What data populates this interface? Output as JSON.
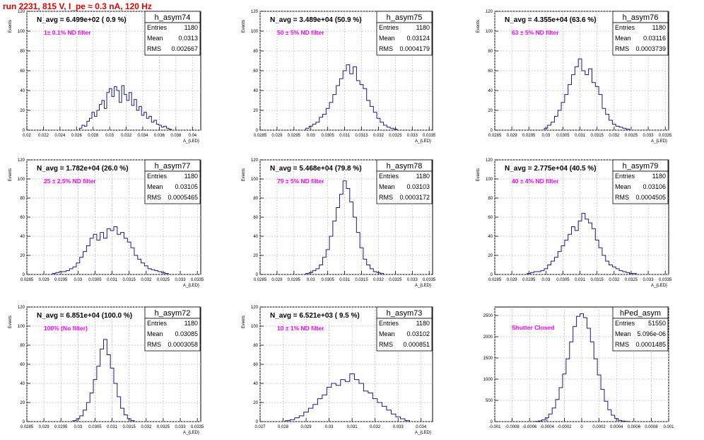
{
  "page_title": "run 2231,   815 V, I_pe ≈ 0.3 nA, 120 Hz",
  "colors": {
    "histogram_line": "#1a1a80",
    "annotation": "#ff00ff",
    "title_text": "#e00000",
    "grid": "#bbbbbb"
  },
  "stat_labels": {
    "entries": "Entries",
    "mean": "Mean",
    "rms": "RMS"
  },
  "chart_data": [
    {
      "type": "histogram",
      "title": "h_asym74",
      "stats": {
        "entries": "1180",
        "mean": "0.0313",
        "rms": "0.002667"
      },
      "navg_text": "N_avg = 6.499e+02 ( 0.9 %)",
      "annotation": "1± 0.1% ND filter",
      "xlabel": "A_{LED}",
      "ylabel": "Events",
      "xlim": [
        0.02,
        0.041
      ],
      "ylim": [
        0,
        120
      ],
      "xticks": [
        0.02,
        0.022,
        0.024,
        0.026,
        0.028,
        0.03,
        0.032,
        0.034,
        0.036,
        0.038,
        0.04
      ],
      "xtick_labels": [
        "0.02",
        "0.022",
        "0.024",
        "0.026",
        "0.028",
        "0.03",
        "0.032",
        "0.034",
        "0.036",
        "0.038",
        "0.04"
      ],
      "yticks": [
        0,
        20,
        40,
        60,
        80,
        100,
        120
      ],
      "x": [
        0.0265,
        0.0268,
        0.0271,
        0.0274,
        0.0277,
        0.028,
        0.0283,
        0.0286,
        0.0289,
        0.0292,
        0.0295,
        0.0298,
        0.0301,
        0.0304,
        0.0307,
        0.031,
        0.0313,
        0.0316,
        0.0319,
        0.0322,
        0.0325,
        0.0328,
        0.0331,
        0.0334,
        0.0337,
        0.034,
        0.0343,
        0.0346,
        0.0349,
        0.0352,
        0.0355,
        0.0358,
        0.0361,
        0.0364,
        0.0367,
        0.037,
        0.0373
      ],
      "values": [
        2,
        5,
        4,
        9,
        12,
        18,
        14,
        20,
        26,
        30,
        22,
        38,
        42,
        34,
        44,
        40,
        28,
        45,
        36,
        30,
        38,
        25,
        31,
        20,
        24,
        15,
        18,
        12,
        14,
        8,
        10,
        6,
        5,
        3,
        4,
        2,
        1
      ]
    },
    {
      "type": "histogram",
      "title": "h_asym75",
      "stats": {
        "entries": "1180",
        "mean": "0.03124",
        "rms": "0.0004179"
      },
      "navg_text": "N_avg = 3.489e+04 (50.9 %)",
      "annotation": "50 ± 5% ND filter",
      "xlabel": "A_{LED}",
      "ylabel": "Events",
      "xlim": [
        0.0285,
        0.0336
      ],
      "ylim": [
        0,
        120
      ],
      "xticks": [
        0.0285,
        0.029,
        0.0295,
        0.03,
        0.0305,
        0.031,
        0.0315,
        0.032,
        0.0325,
        0.033,
        0.0335
      ],
      "xtick_labels": [
        "0.0285",
        "0.029",
        "0.0295",
        "0.03",
        "0.0305",
        "0.031",
        "0.0315",
        "0.032",
        "0.0325",
        "0.033",
        "0.0335"
      ],
      "yticks": [
        0,
        20,
        40,
        60,
        80,
        100,
        120
      ],
      "x": [
        0.0299,
        0.03,
        0.0301,
        0.0302,
        0.0303,
        0.0304,
        0.0305,
        0.0306,
        0.0307,
        0.0308,
        0.0309,
        0.031,
        0.0311,
        0.0312,
        0.0313,
        0.0314,
        0.0315,
        0.0316,
        0.0317,
        0.0318,
        0.0319,
        0.032,
        0.0321,
        0.0322,
        0.0323,
        0.0324,
        0.0325
      ],
      "values": [
        2,
        4,
        6,
        8,
        13,
        16,
        22,
        28,
        36,
        45,
        52,
        60,
        66,
        57,
        64,
        50,
        46,
        42,
        30,
        24,
        18,
        12,
        8,
        5,
        3,
        2,
        1
      ]
    },
    {
      "type": "histogram",
      "title": "h_asym76",
      "stats": {
        "entries": "1180",
        "mean": "0.03116",
        "rms": "0.0003739"
      },
      "navg_text": "N_avg = 4.355e+04 (63.6 %)",
      "annotation": "63 ± 5% ND filter",
      "xlabel": "A_{LED}",
      "ylabel": "Events",
      "xlim": [
        0.0285,
        0.0336
      ],
      "ylim": [
        0,
        120
      ],
      "xticks": [
        0.0285,
        0.029,
        0.0295,
        0.03,
        0.0305,
        0.031,
        0.0315,
        0.032,
        0.0325,
        0.033,
        0.0335
      ],
      "xtick_labels": [
        "0.0285",
        "0.029",
        "0.0295",
        "0.03",
        "0.0305",
        "0.031",
        "0.0315",
        "0.032",
        "0.0325",
        "0.033",
        "0.0335"
      ],
      "yticks": [
        0,
        20,
        40,
        60,
        80,
        100,
        120
      ],
      "x": [
        0.03,
        0.0301,
        0.0302,
        0.0303,
        0.0304,
        0.0305,
        0.0306,
        0.0307,
        0.0308,
        0.0309,
        0.031,
        0.0311,
        0.0312,
        0.0313,
        0.0314,
        0.0315,
        0.0316,
        0.0317,
        0.0318,
        0.0319,
        0.032,
        0.0321,
        0.0322,
        0.0323,
        0.0324
      ],
      "values": [
        2,
        5,
        8,
        14,
        20,
        28,
        36,
        46,
        56,
        64,
        72,
        60,
        56,
        62,
        48,
        44,
        36,
        22,
        16,
        10,
        6,
        4,
        3,
        2,
        1
      ]
    },
    {
      "type": "histogram",
      "title": "h_asym77",
      "stats": {
        "entries": "1180",
        "mean": "0.03105",
        "rms": "0.0005465"
      },
      "navg_text": "N_avg = 1.782e+04 (26.0 %)",
      "annotation": "25 ± 2.5% ND filter",
      "xlabel": "A_{LED}",
      "ylabel": "Events",
      "xlim": [
        0.0285,
        0.0336
      ],
      "ylim": [
        0,
        120
      ],
      "xticks": [
        0.0285,
        0.029,
        0.0295,
        0.03,
        0.0305,
        0.031,
        0.0315,
        0.032,
        0.0325,
        0.033,
        0.0335
      ],
      "xtick_labels": [
        "0.0285",
        "0.029",
        "0.0295",
        "0.03",
        "0.0305",
        "0.031",
        "0.0315",
        "0.032",
        "0.0325",
        "0.033",
        "0.0335"
      ],
      "yticks": [
        0,
        20,
        40,
        60,
        80,
        100,
        120
      ],
      "x": [
        0.0293,
        0.0294,
        0.0295,
        0.0296,
        0.0297,
        0.0298,
        0.0299,
        0.03,
        0.0301,
        0.0302,
        0.0303,
        0.0304,
        0.0305,
        0.0306,
        0.0307,
        0.0308,
        0.0309,
        0.031,
        0.0311,
        0.0312,
        0.0313,
        0.0314,
        0.0315,
        0.0316,
        0.0317,
        0.0318,
        0.0319,
        0.032,
        0.0321,
        0.0322,
        0.0323,
        0.0324,
        0.0325,
        0.0326
      ],
      "values": [
        1,
        2,
        3,
        3,
        4,
        6,
        8,
        12,
        18,
        24,
        30,
        38,
        42,
        36,
        44,
        38,
        48,
        46,
        50,
        42,
        44,
        38,
        34,
        28,
        20,
        16,
        12,
        9,
        6,
        5,
        4,
        3,
        2,
        1
      ]
    },
    {
      "type": "histogram",
      "title": "h_asym78",
      "stats": {
        "entries": "1180",
        "mean": "0.03103",
        "rms": "0.0003172"
      },
      "navg_text": "N_avg = 5.468e+04 (79.8 %)",
      "annotation": "79 ± 5% ND filter",
      "xlabel": "A_{LED}",
      "ylabel": "Events",
      "xlim": [
        0.0285,
        0.0336
      ],
      "ylim": [
        0,
        120
      ],
      "xticks": [
        0.0285,
        0.029,
        0.0295,
        0.03,
        0.0305,
        0.031,
        0.0315,
        0.032,
        0.0325,
        0.033,
        0.0335
      ],
      "xtick_labels": [
        "0.0285",
        "0.029",
        "0.0295",
        "0.03",
        "0.0305",
        "0.031",
        "0.0315",
        "0.032",
        "0.0325",
        "0.033",
        "0.0335"
      ],
      "yticks": [
        0,
        20,
        40,
        60,
        80,
        100,
        120
      ],
      "x": [
        0.0299,
        0.03,
        0.0301,
        0.0302,
        0.0303,
        0.0304,
        0.0305,
        0.0306,
        0.0307,
        0.0308,
        0.0309,
        0.031,
        0.0311,
        0.0312,
        0.0313,
        0.0314,
        0.0315,
        0.0316,
        0.0317,
        0.0318,
        0.0319,
        0.032,
        0.0321
      ],
      "values": [
        1,
        2,
        4,
        6,
        10,
        18,
        26,
        40,
        56,
        70,
        84,
        98,
        90,
        76,
        60,
        44,
        28,
        16,
        10,
        6,
        3,
        2,
        1
      ]
    },
    {
      "type": "histogram",
      "title": "h_asym79",
      "stats": {
        "entries": "1180",
        "mean": "0.03106",
        "rms": "0.0004505"
      },
      "navg_text": "N_avg = 2.775e+04 (40.5 %)",
      "annotation": "40 ± 4% ND filter",
      "xlabel": "A_{LED}",
      "ylabel": "Events",
      "xlim": [
        0.0285,
        0.0336
      ],
      "ylim": [
        0,
        120
      ],
      "xticks": [
        0.0285,
        0.029,
        0.0295,
        0.03,
        0.0305,
        0.031,
        0.0315,
        0.032,
        0.0325,
        0.033,
        0.0335
      ],
      "xtick_labels": [
        "0.0285",
        "0.029",
        "0.0295",
        "0.03",
        "0.0305",
        "0.031",
        "0.0315",
        "0.032",
        "0.0325",
        "0.033",
        "0.0335"
      ],
      "yticks": [
        0,
        20,
        40,
        60,
        80,
        100,
        120
      ],
      "x": [
        0.0295,
        0.0296,
        0.0297,
        0.0298,
        0.0299,
        0.03,
        0.0301,
        0.0302,
        0.0303,
        0.0304,
        0.0305,
        0.0306,
        0.0307,
        0.0308,
        0.0309,
        0.031,
        0.0311,
        0.0312,
        0.0313,
        0.0314,
        0.0315,
        0.0316,
        0.0317,
        0.0318,
        0.0319,
        0.032,
        0.0321,
        0.0322,
        0.0323,
        0.0324,
        0.0325,
        0.0326
      ],
      "values": [
        1,
        2,
        3,
        3,
        4,
        6,
        10,
        14,
        18,
        24,
        30,
        36,
        42,
        50,
        46,
        56,
        64,
        58,
        54,
        48,
        36,
        28,
        20,
        14,
        10,
        8,
        6,
        4,
        3,
        2,
        1,
        1
      ]
    },
    {
      "type": "histogram",
      "title": "h_asym72",
      "stats": {
        "entries": "1180",
        "mean": "0.03085",
        "rms": "0.0003058"
      },
      "navg_text": "N_avg = 6.851e+04 (100.0 %)",
      "annotation": "100% (No filter)",
      "xlabel": "A_{LED}",
      "ylabel": "Events",
      "xlim": [
        0.0285,
        0.0336
      ],
      "ylim": [
        0,
        120
      ],
      "xticks": [
        0.0285,
        0.029,
        0.0295,
        0.03,
        0.0305,
        0.031,
        0.0315,
        0.032,
        0.0325,
        0.033,
        0.0335
      ],
      "xtick_labels": [
        "0.0285",
        "0.029",
        "0.0295",
        "0.03",
        "0.0305",
        "0.031",
        "0.0315",
        "0.032",
        "0.0325",
        "0.033",
        "0.0335"
      ],
      "yticks": [
        0,
        20,
        40,
        60,
        80,
        100,
        120
      ],
      "x": [
        0.0299,
        0.03,
        0.0301,
        0.0302,
        0.0303,
        0.0304,
        0.0305,
        0.0306,
        0.0307,
        0.0308,
        0.0309,
        0.031,
        0.0311,
        0.0312,
        0.0313,
        0.0314,
        0.0315,
        0.0316
      ],
      "values": [
        1,
        3,
        6,
        12,
        20,
        30,
        44,
        58,
        76,
        86,
        70,
        56,
        40,
        26,
        14,
        7,
        3,
        1
      ]
    },
    {
      "type": "histogram",
      "title": "h_asym73",
      "stats": {
        "entries": "1180",
        "mean": "0.03102",
        "rms": "0.000851"
      },
      "navg_text": "N_avg = 6.521e+03 ( 9.5 %)",
      "annotation": "10 ± 1% ND filter",
      "xlabel": "A_{LED}",
      "ylabel": "Events",
      "xlim": [
        0.027,
        0.0345
      ],
      "ylim": [
        0,
        120
      ],
      "xticks": [
        0.027,
        0.028,
        0.029,
        0.03,
        0.031,
        0.032,
        0.033,
        0.034
      ],
      "xtick_labels": [
        "0.027",
        "0.028",
        "0.029",
        "0.03",
        "0.031",
        "0.032",
        "0.033",
        "0.034"
      ],
      "yticks": [
        0,
        20,
        40,
        60,
        80,
        100,
        120
      ],
      "x": [
        0.0282,
        0.0284,
        0.0286,
        0.0288,
        0.029,
        0.0292,
        0.0294,
        0.0296,
        0.0298,
        0.03,
        0.0302,
        0.0304,
        0.0306,
        0.0308,
        0.031,
        0.0312,
        0.0314,
        0.0316,
        0.0318,
        0.032,
        0.0322,
        0.0324,
        0.0326,
        0.0328,
        0.033,
        0.0332,
        0.0334
      ],
      "values": [
        1,
        2,
        4,
        6,
        10,
        14,
        18,
        24,
        28,
        36,
        40,
        38,
        44,
        42,
        50,
        44,
        40,
        32,
        30,
        24,
        20,
        16,
        12,
        8,
        5,
        3,
        1
      ]
    },
    {
      "type": "histogram",
      "title": "hPed_asym",
      "stats": {
        "entries": "51550",
        "mean": "5.096e-06",
        "rms": "0.0001485"
      },
      "navg_text": "",
      "annotation": "Shutter Closed",
      "xlabel": "",
      "ylabel": "",
      "xlim": [
        -0.001,
        0.001
      ],
      "ylim": [
        0,
        2700
      ],
      "xticks": [
        -0.001,
        -0.0008,
        -0.0006,
        -0.0004,
        -0.0002,
        0,
        0.0002,
        0.0004,
        0.0006,
        0.0008,
        0.001
      ],
      "xtick_labels": [
        "-0.001",
        "-0.0008",
        "-0.0006",
        "-0.0004",
        "-0.0002",
        "0",
        "0.0002",
        "0.0004",
        "0.0006",
        "0.0008",
        "0.001"
      ],
      "yticks": [
        0,
        500,
        1000,
        1500,
        2000,
        2500
      ],
      "x": [
        -0.00052,
        -0.00048,
        -0.00044,
        -0.0004,
        -0.00036,
        -0.00032,
        -0.00028,
        -0.00024,
        -0.0002,
        -0.00016,
        -0.00012,
        -8e-05,
        -4e-05,
        0,
        4e-05,
        8e-05,
        0.00012,
        0.00016,
        0.0002,
        0.00024,
        0.00028,
        0.00032,
        0.00036,
        0.0004,
        0.00044,
        0.00048,
        0.00052
      ],
      "values": [
        5,
        15,
        40,
        90,
        180,
        320,
        520,
        800,
        1120,
        1480,
        1880,
        2240,
        2480,
        2540,
        2450,
        2200,
        1880,
        1480,
        1100,
        760,
        480,
        280,
        150,
        70,
        30,
        12,
        4
      ]
    }
  ]
}
